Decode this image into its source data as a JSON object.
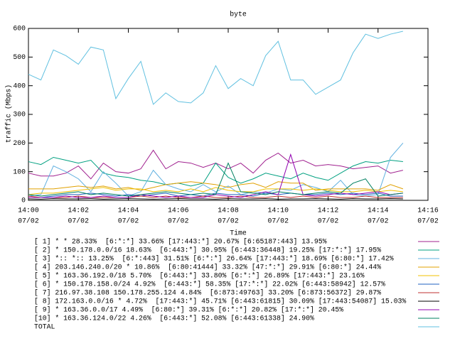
{
  "chart_data": {
    "type": "line",
    "title": "byte",
    "xlabel": "Time",
    "ylabel": "traffic (Mbps)",
    "x": [
      0,
      0.5,
      1,
      1.5,
      2,
      2.5,
      3,
      3.5,
      4,
      4.5,
      5,
      5.5,
      6,
      6.5,
      7,
      7.5,
      8,
      8.5,
      9,
      9.5,
      10,
      10.5,
      11,
      11.5,
      12,
      12.5,
      13,
      13.5,
      14,
      14.5,
      15
    ],
    "xlim": [
      0,
      16
    ],
    "xticks": [
      {
        "value": 0,
        "label": "14:00",
        "date": "07/02"
      },
      {
        "value": 2,
        "label": "14:02",
        "date": "07/02"
      },
      {
        "value": 4,
        "label": "14:04",
        "date": "07/02"
      },
      {
        "value": 6,
        "label": "14:06",
        "date": "07/02"
      },
      {
        "value": 8,
        "label": "14:08",
        "date": "07/02"
      },
      {
        "value": 10,
        "label": "14:10",
        "date": "07/02"
      },
      {
        "value": 12,
        "label": "14:12",
        "date": "07/02"
      },
      {
        "value": 14,
        "label": "14:14",
        "date": "07/02"
      },
      {
        "value": 16,
        "label": "14:16",
        "date": "07/02"
      }
    ],
    "ylim": [
      0,
      600
    ],
    "yticks": [
      0,
      100,
      200,
      300,
      400,
      500,
      600
    ],
    "legend": "bottom",
    "series": [
      {
        "name": "[ 1] * * 28.33%  [6:*:*] 33.66% [17:443:*] 20.67% [6:65187:443] 13.95%",
        "color": "#a0208f",
        "values": [
          95,
          85,
          85,
          95,
          120,
          75,
          130,
          100,
          95,
          110,
          175,
          110,
          135,
          130,
          115,
          130,
          110,
          130,
          95,
          140,
          165,
          130,
          140,
          120,
          125,
          120,
          110,
          115,
          120,
          95,
          105
        ]
      },
      {
        "name": "[ 2] * 150.178.0.0/16 18.63%  [6:443:*] 30.95% [6:443:36448] 19.25% [17:*:*] 17.95%",
        "color": "#00a080",
        "values": [
          135,
          125,
          150,
          140,
          130,
          140,
          95,
          85,
          80,
          70,
          65,
          55,
          60,
          50,
          60,
          130,
          80,
          60,
          75,
          95,
          85,
          75,
          95,
          80,
          70,
          95,
          120,
          135,
          130,
          140,
          135
        ]
      },
      {
        "name": "[ 3] *:: *:: 13.25%  [6:*:443] 31.51% [6:*:*] 26.64% [17:443:*] 18.69% [6:80:*] 17.42%",
        "color": "#60b0e0",
        "values": [
          15,
          20,
          120,
          100,
          75,
          30,
          100,
          60,
          15,
          30,
          105,
          55,
          40,
          30,
          55,
          30,
          50,
          20,
          30,
          25,
          40,
          35,
          55,
          45,
          30,
          70,
          20,
          15,
          20,
          150,
          200
        ]
      },
      {
        "name": "[ 4] 203.146.240.0/20 * 10.86%  [6:80:41444] 33.32% [47:*:*] 29.91% [6:80:*] 24.44%",
        "color": "#e0a000",
        "values": [
          40,
          40,
          40,
          45,
          50,
          45,
          50,
          40,
          45,
          35,
          45,
          55,
          60,
          65,
          60,
          55,
          45,
          55,
          60,
          45,
          65,
          60,
          60,
          35,
          40,
          40,
          40,
          40,
          35,
          55,
          40
        ]
      },
      {
        "name": "[ 5] * 163.36.192.0/18 5.70%  [6:443:*] 33.80% [6:*:*] 26.89% [17:443:*] 23.16%",
        "color": "#f0c000",
        "values": [
          20,
          25,
          25,
          30,
          35,
          40,
          45,
          35,
          40,
          40,
          30,
          35,
          30,
          40,
          30,
          45,
          35,
          30,
          30,
          40,
          40,
          40,
          35,
          40,
          35,
          30,
          30,
          35,
          30,
          35,
          30
        ]
      },
      {
        "name": "[ 6] * 150.178.158.0/24 4.92%  [6:443:*] 58.35% [17:*:*] 22.02% [6:443:58942] 12.57%",
        "color": "#2060c0",
        "values": [
          10,
          10,
          15,
          20,
          20,
          25,
          20,
          15,
          20,
          15,
          20,
          25,
          15,
          20,
          15,
          25,
          20,
          20,
          15,
          25,
          20,
          25,
          20,
          20,
          25,
          20,
          25,
          20,
          25,
          15,
          15
        ]
      },
      {
        "name": "[ 7] 216.97.38.108 150.178.255.124 4.84%  [6:873:49763] 33.20% [6:873:56372] 29.87%",
        "color": "#c03030",
        "values": [
          15,
          10,
          10,
          10,
          15,
          10,
          10,
          10,
          10,
          15,
          10,
          15,
          10,
          10,
          15,
          10,
          10,
          15,
          10,
          10,
          15,
          10,
          15,
          10,
          15,
          10,
          10,
          15,
          10,
          10,
          10
        ]
      },
      {
        "name": "[ 8] 172.163.0.0/16 * 4.72%  [17:443:*] 45.71% [6:443:61815] 30.09% [17:443:54087] 15.03%",
        "color": "#000000",
        "values": [
          5,
          4,
          6,
          5,
          5,
          6,
          4,
          5,
          6,
          5,
          4,
          5,
          6,
          5,
          5,
          4,
          6,
          5,
          5,
          6,
          4,
          5,
          5,
          6,
          5,
          4,
          6,
          5,
          5,
          6,
          5
        ]
      },
      {
        "name": "[ 9] * 163.36.0.0/17 4.49%  [6:80:*] 39.31% [6:*:*] 20.82% [17:*:*] 20.45%",
        "color": "#9000b0",
        "values": [
          10,
          10,
          10,
          15,
          10,
          10,
          15,
          10,
          10,
          20,
          15,
          10,
          15,
          10,
          10,
          20,
          15,
          10,
          20,
          30,
          20,
          160,
          20,
          15,
          20,
          25,
          20,
          25,
          30,
          20,
          25
        ]
      },
      {
        "name": "[10] * 163.36.124.0/22 4.26%  [6:443:*] 52.08% [6:443:61338] 24.90%",
        "color": "#008060",
        "values": [
          20,
          15,
          20,
          25,
          30,
          20,
          25,
          20,
          15,
          20,
          25,
          30,
          25,
          20,
          25,
          20,
          130,
          30,
          25,
          20,
          30,
          25,
          20,
          25,
          30,
          25,
          60,
          75,
          15,
          20,
          25
        ]
      },
      {
        "name": "TOTAL",
        "color": "#60c0e0",
        "values": [
          440,
          420,
          525,
          505,
          475,
          535,
          525,
          355,
          425,
          485,
          335,
          375,
          345,
          340,
          375,
          470,
          390,
          425,
          400,
          505,
          555,
          420,
          420,
          370,
          395,
          420,
          515,
          580,
          565,
          580,
          590
        ]
      }
    ]
  }
}
